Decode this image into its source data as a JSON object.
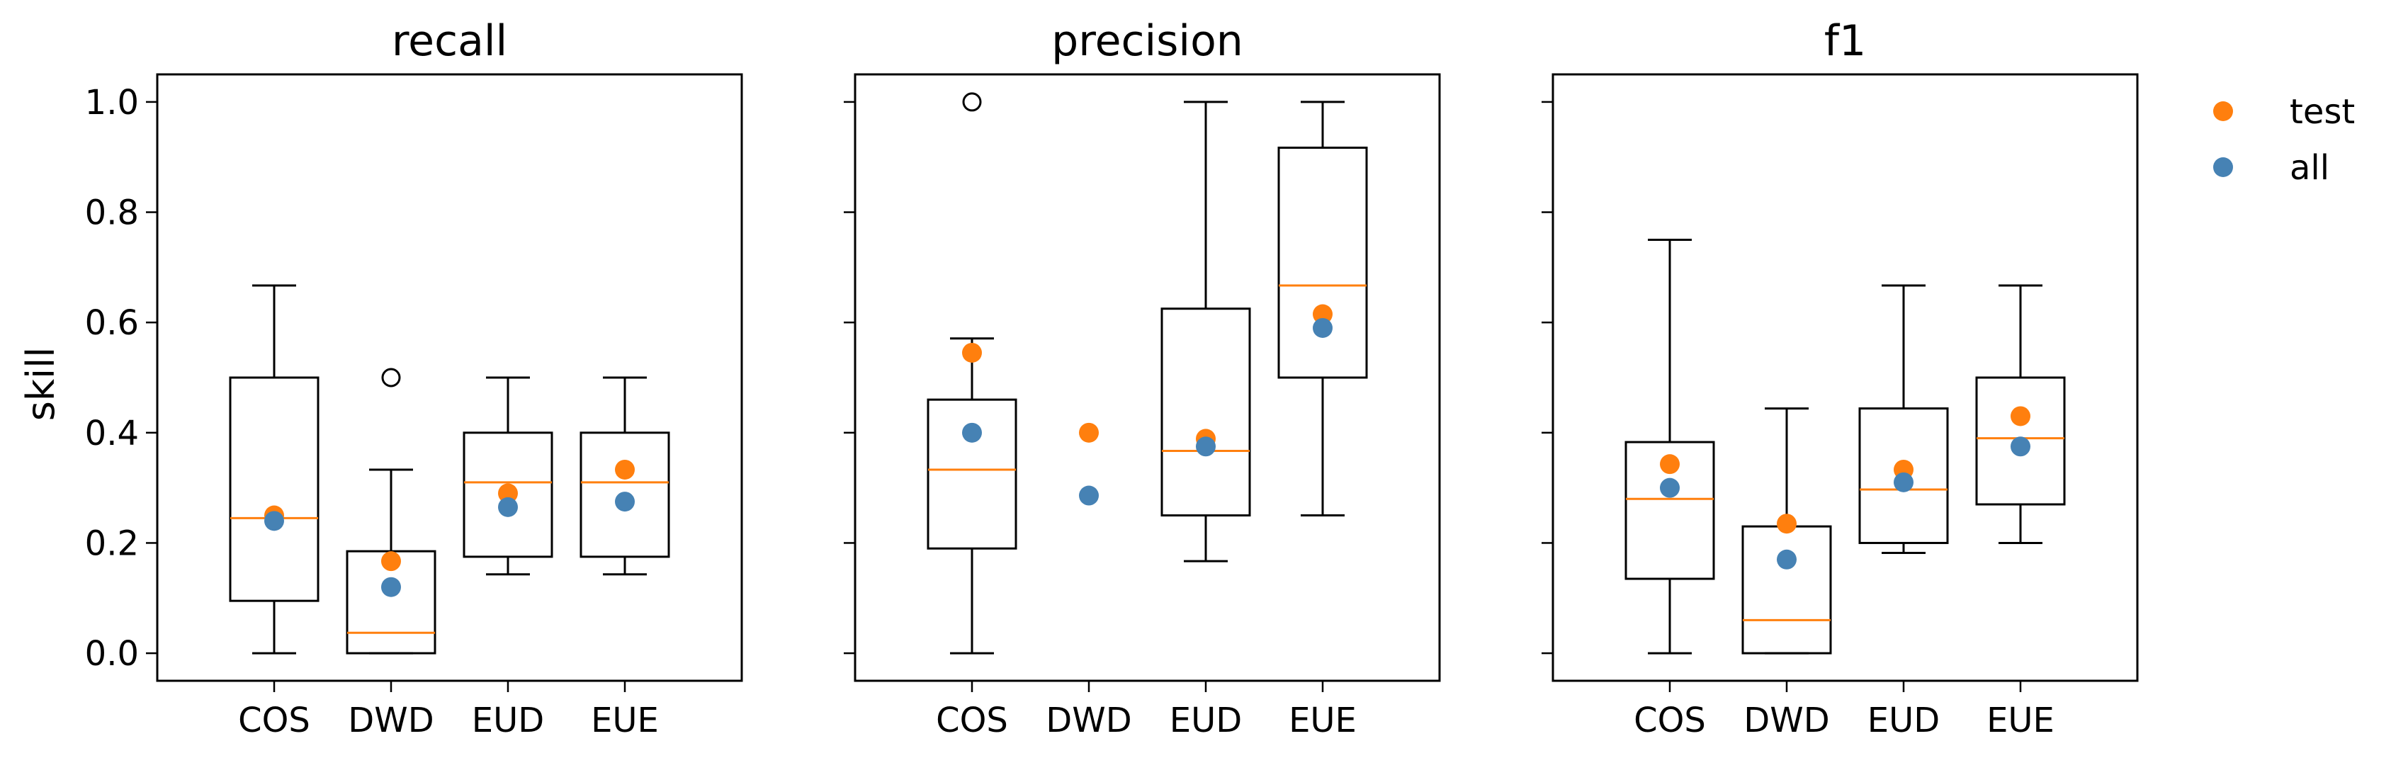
{
  "figure": {
    "ylabel": "skill",
    "legend": {
      "placement": "outside-right",
      "entries": [
        {
          "name": "test",
          "color": "#ff7f0e"
        },
        {
          "name": "all",
          "color": "#4682b4"
        }
      ]
    },
    "colors": {
      "median": "#ff7f0e",
      "test": "#ff7f0e",
      "all": "#4682b4",
      "box": "#000000"
    }
  },
  "chart_data": [
    {
      "type": "box",
      "title": "recall",
      "categories": [
        "COS",
        "DWD",
        "EUD",
        "EUE"
      ],
      "ylim": [
        -0.05,
        1.05
      ],
      "yticks": [
        "0.0",
        "0.2",
        "0.4",
        "0.6",
        "0.8",
        "1.0"
      ],
      "show_ytick_labels": true,
      "boxes": [
        {
          "category": "COS",
          "whislo": 0.0,
          "q1": 0.095,
          "median": 0.245,
          "q3": 0.5,
          "whishi": 0.667,
          "fliers": []
        },
        {
          "category": "DWD",
          "whislo": 0.0,
          "q1": 0.0,
          "median": 0.037,
          "q3": 0.185,
          "whishi": 0.333,
          "fliers": [
            0.5
          ]
        },
        {
          "category": "EUD",
          "whislo": 0.143,
          "q1": 0.175,
          "median": 0.31,
          "q3": 0.4,
          "whishi": 0.5,
          "fliers": []
        },
        {
          "category": "EUE",
          "whislo": 0.143,
          "q1": 0.175,
          "median": 0.31,
          "q3": 0.4,
          "whishi": 0.5,
          "fliers": []
        }
      ],
      "series": [
        {
          "name": "test",
          "values": [
            0.25,
            0.167,
            0.29,
            0.333
          ]
        },
        {
          "name": "all",
          "values": [
            0.24,
            0.12,
            0.265,
            0.275
          ]
        }
      ]
    },
    {
      "type": "box",
      "title": "precision",
      "categories": [
        "COS",
        "DWD",
        "EUD",
        "EUE"
      ],
      "ylim": [
        -0.05,
        1.05
      ],
      "yticks": [
        "0.0",
        "0.2",
        "0.4",
        "0.6",
        "0.8",
        "1.0"
      ],
      "show_ytick_labels": false,
      "boxes": [
        {
          "category": "COS",
          "whislo": 0.0,
          "q1": 0.19,
          "median": 0.333,
          "q3": 0.46,
          "whishi": 0.571,
          "fliers": [
            1.0
          ]
        },
        {
          "category": "DWD",
          "whislo": null,
          "q1": null,
          "median": null,
          "q3": null,
          "whishi": null,
          "fliers": []
        },
        {
          "category": "EUD",
          "whislo": 0.167,
          "q1": 0.25,
          "median": 0.367,
          "q3": 0.625,
          "whishi": 1.0,
          "fliers": []
        },
        {
          "category": "EUE",
          "whislo": 0.25,
          "q1": 0.5,
          "median": 0.667,
          "q3": 0.917,
          "whishi": 1.0,
          "fliers": []
        }
      ],
      "series": [
        {
          "name": "test",
          "values": [
            0.545,
            0.4,
            0.389,
            0.615
          ]
        },
        {
          "name": "all",
          "values": [
            0.4,
            0.286,
            0.375,
            0.59
          ]
        }
      ]
    },
    {
      "type": "box",
      "title": "f1",
      "categories": [
        "COS",
        "DWD",
        "EUD",
        "EUE"
      ],
      "ylim": [
        -0.05,
        1.05
      ],
      "yticks": [
        "0.0",
        "0.2",
        "0.4",
        "0.6",
        "0.8",
        "1.0"
      ],
      "show_ytick_labels": false,
      "boxes": [
        {
          "category": "COS",
          "whislo": 0.0,
          "q1": 0.135,
          "median": 0.28,
          "q3": 0.383,
          "whishi": 0.75,
          "fliers": []
        },
        {
          "category": "DWD",
          "whislo": 0.0,
          "q1": 0.0,
          "median": 0.06,
          "q3": 0.23,
          "whishi": 0.444,
          "fliers": []
        },
        {
          "category": "EUD",
          "whislo": 0.182,
          "q1": 0.2,
          "median": 0.297,
          "q3": 0.444,
          "whishi": 0.667,
          "fliers": []
        },
        {
          "category": "EUE",
          "whislo": 0.2,
          "q1": 0.27,
          "median": 0.39,
          "q3": 0.5,
          "whishi": 0.667,
          "fliers": []
        }
      ],
      "series": [
        {
          "name": "test",
          "values": [
            0.343,
            0.235,
            0.333,
            0.43
          ]
        },
        {
          "name": "all",
          "values": [
            0.3,
            0.17,
            0.31,
            0.375
          ]
        }
      ]
    }
  ]
}
